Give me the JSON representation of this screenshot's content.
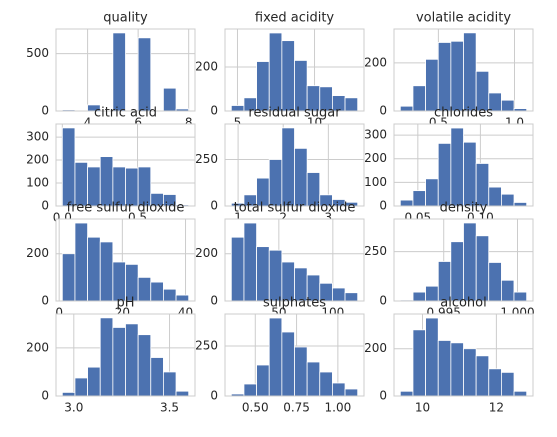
{
  "chart_data": [
    {
      "type": "histogram",
      "title": "quality",
      "color": "#4c72b0",
      "grid": true,
      "bins": [
        3,
        3.5,
        4,
        4.5,
        5,
        5.5,
        6,
        6.5,
        7,
        7.5,
        8
      ],
      "values": [
        10,
        0,
        53,
        0,
        681,
        0,
        638,
        0,
        199,
        18
      ],
      "xlim": [
        2.75,
        8.25
      ],
      "xticks": [
        4,
        6,
        8
      ],
      "ylim": [
        0,
        715
      ],
      "yticks": [
        0,
        500
      ]
    },
    {
      "type": "histogram",
      "title": "fixed acidity",
      "color": "#4c72b0",
      "grid": true,
      "bins": [
        4.6,
        5.42,
        6.24,
        7.06,
        7.88,
        8.7,
        9.52,
        10.34,
        11.16,
        11.98,
        12.8
      ],
      "values": [
        25,
        60,
        225,
        355,
        320,
        230,
        115,
        110,
        70,
        60
      ],
      "xlim": [
        4.19,
        13.21
      ],
      "xticks": [
        5,
        10
      ],
      "ylim": [
        0,
        373
      ],
      "yticks": [
        0,
        200
      ]
    },
    {
      "type": "histogram",
      "title": "volatile acidity",
      "color": "#4c72b0",
      "grid": true,
      "bins": [
        0.25,
        0.333,
        0.416,
        0.499,
        0.582,
        0.665,
        0.748,
        0.831,
        0.914,
        0.997,
        1.08
      ],
      "values": [
        20,
        105,
        215,
        285,
        290,
        325,
        165,
        75,
        45,
        10
      ],
      "xlim": [
        0.2085,
        1.1215
      ],
      "xticks": [
        0.5,
        {
          "value": 1,
          "label": "1.0"
        }
      ],
      "ylim": [
        0,
        341
      ],
      "yticks": [
        0,
        200
      ]
    },
    {
      "type": "histogram",
      "title": "citric acid",
      "color": "#4c72b0",
      "grid": true,
      "bins": [
        0,
        0.084,
        0.168,
        0.252,
        0.336,
        0.42,
        0.504,
        0.588,
        0.672,
        0.756,
        0.84
      ],
      "values": [
        340,
        190,
        170,
        215,
        170,
        165,
        170,
        55,
        50,
        5
      ],
      "xlim": [
        -0.042,
        0.882
      ],
      "xticks": [
        {
          "value": 0,
          "label": "0.0"
        },
        0.5
      ],
      "ylim": [
        0,
        357
      ],
      "yticks": [
        0,
        100,
        200,
        300
      ]
    },
    {
      "type": "histogram",
      "title": "residual sugar",
      "color": "#4c72b0",
      "grid": true,
      "bins": [
        0.85,
        1.13,
        1.41,
        1.69,
        1.97,
        2.25,
        2.53,
        2.81,
        3.09,
        3.37,
        3.65
      ],
      "values": [
        15,
        60,
        150,
        250,
        420,
        310,
        180,
        60,
        35,
        20
      ],
      "xlim": [
        0.71,
        3.79
      ],
      "xticks": [
        1,
        2,
        3
      ],
      "ylim": [
        0,
        441
      ],
      "yticks": [
        0,
        250
      ]
    },
    {
      "type": "histogram",
      "title": "chlorides",
      "color": "#4c72b0",
      "grid": true,
      "bins": [
        0.036,
        0.0461,
        0.0562,
        0.0663,
        0.0764,
        0.0865,
        0.0966,
        0.1067,
        0.1168,
        0.1269,
        0.137
      ],
      "values": [
        25,
        65,
        115,
        265,
        330,
        270,
        180,
        80,
        50,
        15
      ],
      "xlim": [
        0.03095,
        0.14205
      ],
      "xticks": [
        0.05,
        {
          "value": 0.1,
          "label": "0.10"
        }
      ],
      "ylim": [
        0,
        347
      ],
      "yticks": [
        0,
        100,
        200,
        300
      ]
    },
    {
      "type": "histogram",
      "title": "free sulfur dioxide",
      "color": "#4c72b0",
      "grid": true,
      "bins": [
        1,
        5,
        9,
        13,
        17,
        21,
        25,
        29,
        33,
        37,
        41
      ],
      "values": [
        200,
        330,
        270,
        250,
        165,
        155,
        100,
        80,
        50,
        25
      ],
      "xlim": [
        -1,
        43
      ],
      "xticks": [
        0,
        20,
        40
      ],
      "ylim": [
        0,
        347
      ],
      "yticks": [
        0,
        200
      ]
    },
    {
      "type": "histogram",
      "title": "total sulfur dioxide",
      "color": "#4c72b0",
      "grid": true,
      "bins": [
        6,
        17.7,
        29.4,
        41.1,
        52.8,
        64.5,
        76.2,
        87.9,
        99.6,
        111.3,
        123
      ],
      "values": [
        270,
        330,
        230,
        215,
        165,
        140,
        110,
        75,
        55,
        35
      ],
      "xlim": [
        0.15,
        128.85
      ],
      "xticks": [
        50,
        100
      ],
      "ylim": [
        0,
        347
      ],
      "yticks": [
        0,
        200
      ]
    },
    {
      "type": "histogram",
      "title": "density",
      "color": "#4c72b0",
      "grid": true,
      "bins": [
        0.99206,
        0.99292,
        0.99377,
        0.99463,
        0.99548,
        0.99634,
        0.9972,
        0.99805,
        0.99891,
        0.99976,
        1.00062
      ],
      "values": [
        5,
        45,
        75,
        200,
        300,
        395,
        330,
        195,
        105,
        45
      ],
      "xlim": [
        0.99163,
        1.00105
      ],
      "xticks": [
        0.995,
        {
          "value": 1,
          "label": "1.000"
        }
      ],
      "ylim": [
        0,
        415
      ],
      "yticks": [
        0,
        250
      ]
    },
    {
      "type": "histogram",
      "title": "pH",
      "color": "#4c72b0",
      "grid": true,
      "bins": [
        2.94,
        3.006,
        3.072,
        3.138,
        3.204,
        3.27,
        3.336,
        3.402,
        3.468,
        3.534,
        3.6
      ],
      "values": [
        15,
        75,
        120,
        325,
        285,
        300,
        255,
        160,
        100,
        20
      ],
      "xlim": [
        2.907,
        3.633
      ],
      "xticks": [
        {
          "value": 3,
          "label": "3.0"
        },
        3.5
      ],
      "ylim": [
        0,
        341
      ],
      "yticks": [
        0,
        200
      ]
    },
    {
      "type": "histogram",
      "title": "sulphates",
      "color": "#4c72b0",
      "grid": true,
      "bins": [
        0.355,
        0.4315,
        0.508,
        0.5845,
        0.661,
        0.7375,
        0.814,
        0.8905,
        0.967,
        1.0435,
        1.12
      ],
      "values": [
        10,
        60,
        155,
        390,
        320,
        245,
        170,
        120,
        65,
        35
      ],
      "xlim": [
        0.31675,
        1.15825
      ],
      "xticks": [
        {
          "value": 0.5,
          "label": "0.50"
        },
        0.75,
        {
          "value": 1,
          "label": "1.00"
        }
      ],
      "ylim": [
        0,
        410
      ],
      "yticks": [
        0,
        250
      ]
    },
    {
      "type": "histogram",
      "title": "alcohol",
      "color": "#4c72b0",
      "grid": true,
      "bins": [
        9.4,
        9.742,
        10.084,
        10.426,
        10.768,
        11.11,
        11.452,
        11.794,
        12.136,
        12.478,
        12.82
      ],
      "values": [
        20,
        280,
        330,
        235,
        225,
        200,
        170,
        115,
        100,
        20
      ],
      "xlim": [
        9.229,
        12.991
      ],
      "xticks": [
        10,
        12
      ],
      "ylim": [
        0,
        347
      ],
      "yticks": [
        0,
        200
      ]
    }
  ]
}
